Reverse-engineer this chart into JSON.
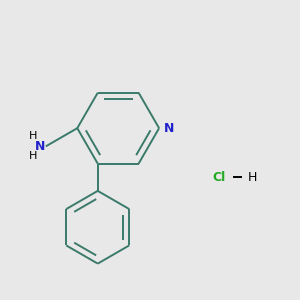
{
  "bg_color": "#e8e8e8",
  "bond_color": "#3a7a6a",
  "N_color": "#2222cc",
  "Cl_color": "#22aa22",
  "lw": 1.4,
  "dbo": 0.035,
  "figsize": [
    3.0,
    3.0
  ],
  "dpi": 100,
  "xlim": [
    -0.55,
    1.1
  ],
  "ylim": [
    -0.65,
    0.85
  ]
}
